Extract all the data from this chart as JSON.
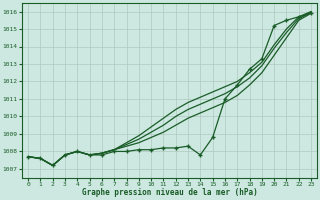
{
  "xlabel": "Graphe pression niveau de la mer (hPa)",
  "background_color": "#cce8e0",
  "grid_color": "#b0c8c0",
  "line_color": "#1a5c28",
  "xlim": [
    -0.5,
    23.5
  ],
  "ylim": [
    1006.5,
    1016.5
  ],
  "yticks": [
    1007,
    1008,
    1009,
    1010,
    1011,
    1012,
    1013,
    1014,
    1015,
    1016
  ],
  "xticks": [
    0,
    1,
    2,
    3,
    4,
    5,
    6,
    7,
    8,
    9,
    10,
    11,
    12,
    13,
    14,
    15,
    16,
    17,
    18,
    19,
    20,
    21,
    22,
    23
  ],
  "marked_x": [
    0,
    1,
    2,
    3,
    4,
    5,
    6,
    7,
    8,
    9,
    10,
    11,
    12,
    13,
    14,
    15,
    16,
    17,
    18,
    19,
    20,
    21,
    22,
    23
  ],
  "marked_y": [
    1007.7,
    1007.6,
    1007.2,
    1007.8,
    1008.0,
    1007.8,
    1007.8,
    1008.0,
    1008.0,
    1008.1,
    1008.1,
    1008.2,
    1008.2,
    1008.3,
    1007.8,
    1008.8,
    1011.0,
    1011.8,
    1012.7,
    1013.3,
    1015.2,
    1015.5,
    1015.7,
    1015.9
  ],
  "smooth1_x": [
    0,
    1,
    2,
    3,
    4,
    5,
    6,
    7,
    8,
    9,
    10,
    11,
    12,
    13,
    14,
    15,
    16,
    17,
    18,
    19,
    20,
    21,
    22,
    23
  ],
  "smooth1_y": [
    1007.7,
    1007.6,
    1007.2,
    1007.8,
    1008.0,
    1007.8,
    1007.9,
    1008.1,
    1008.3,
    1008.5,
    1008.8,
    1009.1,
    1009.5,
    1009.9,
    1010.2,
    1010.5,
    1010.8,
    1011.2,
    1011.8,
    1012.5,
    1013.5,
    1014.5,
    1015.5,
    1015.9
  ],
  "smooth2_x": [
    0,
    1,
    2,
    3,
    4,
    5,
    6,
    7,
    8,
    9,
    10,
    11,
    12,
    13,
    14,
    15,
    16,
    17,
    18,
    19,
    20,
    21,
    22,
    23
  ],
  "smooth2_y": [
    1007.7,
    1007.6,
    1007.2,
    1007.8,
    1008.0,
    1007.8,
    1007.9,
    1008.1,
    1008.4,
    1008.7,
    1009.1,
    1009.5,
    1010.0,
    1010.4,
    1010.7,
    1011.0,
    1011.3,
    1011.7,
    1012.2,
    1012.9,
    1013.9,
    1014.8,
    1015.6,
    1015.95
  ],
  "smooth3_x": [
    0,
    1,
    2,
    3,
    4,
    5,
    6,
    7,
    8,
    9,
    10,
    11,
    12,
    13,
    14,
    15,
    16,
    17,
    18,
    19,
    20,
    21,
    22,
    23
  ],
  "smooth3_y": [
    1007.7,
    1007.6,
    1007.2,
    1007.8,
    1008.0,
    1007.8,
    1007.9,
    1008.1,
    1008.5,
    1008.9,
    1009.4,
    1009.9,
    1010.4,
    1010.8,
    1011.1,
    1011.4,
    1011.7,
    1012.0,
    1012.5,
    1013.1,
    1014.1,
    1015.0,
    1015.7,
    1016.0
  ]
}
